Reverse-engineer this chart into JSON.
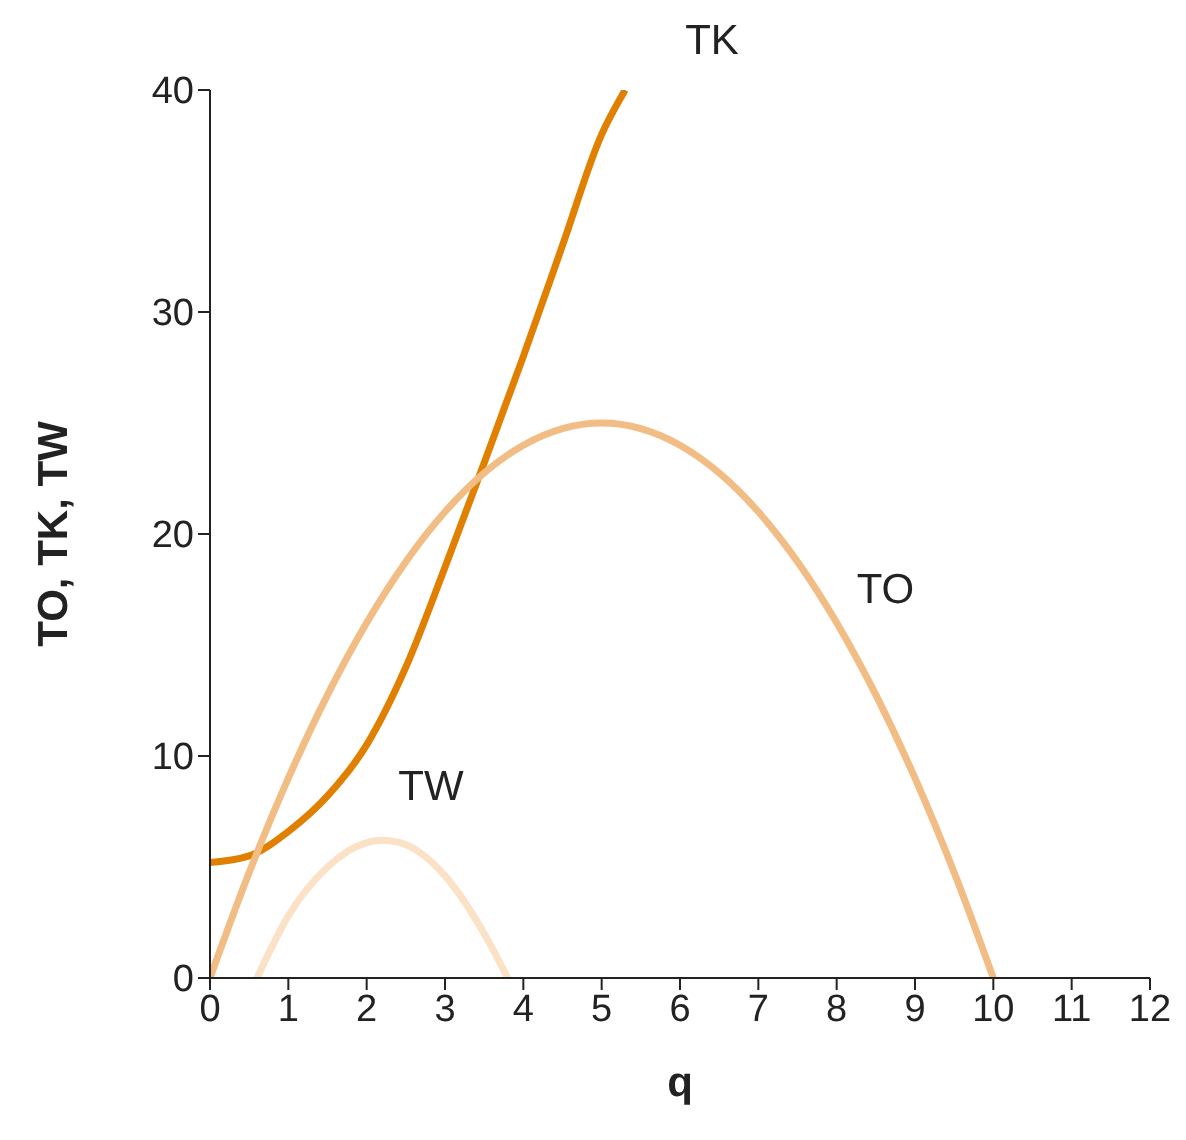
{
  "chart_data": {
    "type": "line",
    "xlabel": "q",
    "ylabel": "TO, TK, TW",
    "xlim": [
      0,
      12
    ],
    "xticks": [
      0,
      1,
      2,
      3,
      4,
      5,
      6,
      7,
      8,
      9,
      10,
      11,
      12
    ],
    "ylim": [
      0,
      40
    ],
    "yticks": [
      0,
      10,
      20,
      30,
      40
    ],
    "grid": false,
    "legend": false,
    "marker": "none",
    "series": [
      {
        "name": "TK",
        "color": "#e07f00",
        "x": [
          0,
          0.5,
          1,
          1.5,
          2,
          2.5,
          3,
          3.5,
          4,
          4.5,
          5,
          5.3
        ],
        "values": [
          5.2,
          5.5,
          6.6,
          8.2,
          10.5,
          14,
          18.5,
          23.2,
          28,
          33,
          38,
          40
        ]
      },
      {
        "name": "TO",
        "color": "#f2bd85",
        "x": [
          0,
          0.5,
          1,
          1.5,
          2,
          2.5,
          3,
          3.5,
          4,
          4.5,
          5,
          5.5,
          6,
          6.5,
          7,
          7.5,
          8,
          8.5,
          9,
          9.5,
          10
        ],
        "values": [
          0,
          4.75,
          9,
          12.75,
          16,
          18.75,
          21,
          22.75,
          24,
          24.75,
          25,
          24.75,
          24,
          22.75,
          21,
          18.75,
          16,
          12.75,
          9,
          4.75,
          0
        ]
      },
      {
        "name": "TW",
        "color": "#fbe2c6",
        "x": [
          0.6,
          1,
          1.5,
          2,
          2.2,
          2.5,
          3,
          3.5,
          3.8
        ],
        "values": [
          0,
          2.8,
          5,
          6.1,
          6.2,
          6,
          4.6,
          2,
          0
        ]
      }
    ]
  }
}
